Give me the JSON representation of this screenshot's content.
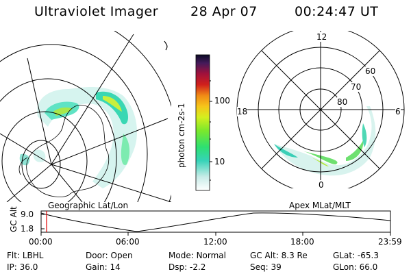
{
  "header": {
    "instrument": "Ultraviolet Imager",
    "date": "28 Apr 07",
    "time": "00:24:47 UT"
  },
  "colorbar": {
    "unit_label": "photon cm-2s-1",
    "ticks": [
      "100",
      "10"
    ]
  },
  "polar_plot": {
    "lat_labels": [
      "60",
      "70",
      "80"
    ],
    "mlt_labels": {
      "top": "12",
      "bottom": "0",
      "left": "18",
      "right": "6"
    }
  },
  "timeline": {
    "ylabel": "GC Alt",
    "y_ticks": [
      "9.0",
      "1.8"
    ],
    "left_caption": "Geographic Lat/Lon",
    "right_caption": "Apex MLat/MLT",
    "x_ticks": [
      "00:00",
      "06:00",
      "12:00",
      "18:00",
      "23:59"
    ]
  },
  "info_rows": [
    [
      {
        "key": "Flt:",
        "val": "LBHL"
      },
      {
        "key": "Door:",
        "val": "Open"
      },
      {
        "key": "Mode:",
        "val": "Normal"
      },
      {
        "key": "GC Alt:",
        "val": "8.3 Re"
      },
      {
        "key": "GLat:",
        "val": "-65.3"
      }
    ],
    [
      {
        "key": "IP:",
        "val": "36.0"
      },
      {
        "key": "Gain:",
        "val": "14"
      },
      {
        "key": "Dsp:",
        "val": "-2.2"
      },
      {
        "key": "Seq:",
        "val": "39"
      },
      {
        "key": "GLon:",
        "val": "66.0"
      }
    ]
  ]
}
